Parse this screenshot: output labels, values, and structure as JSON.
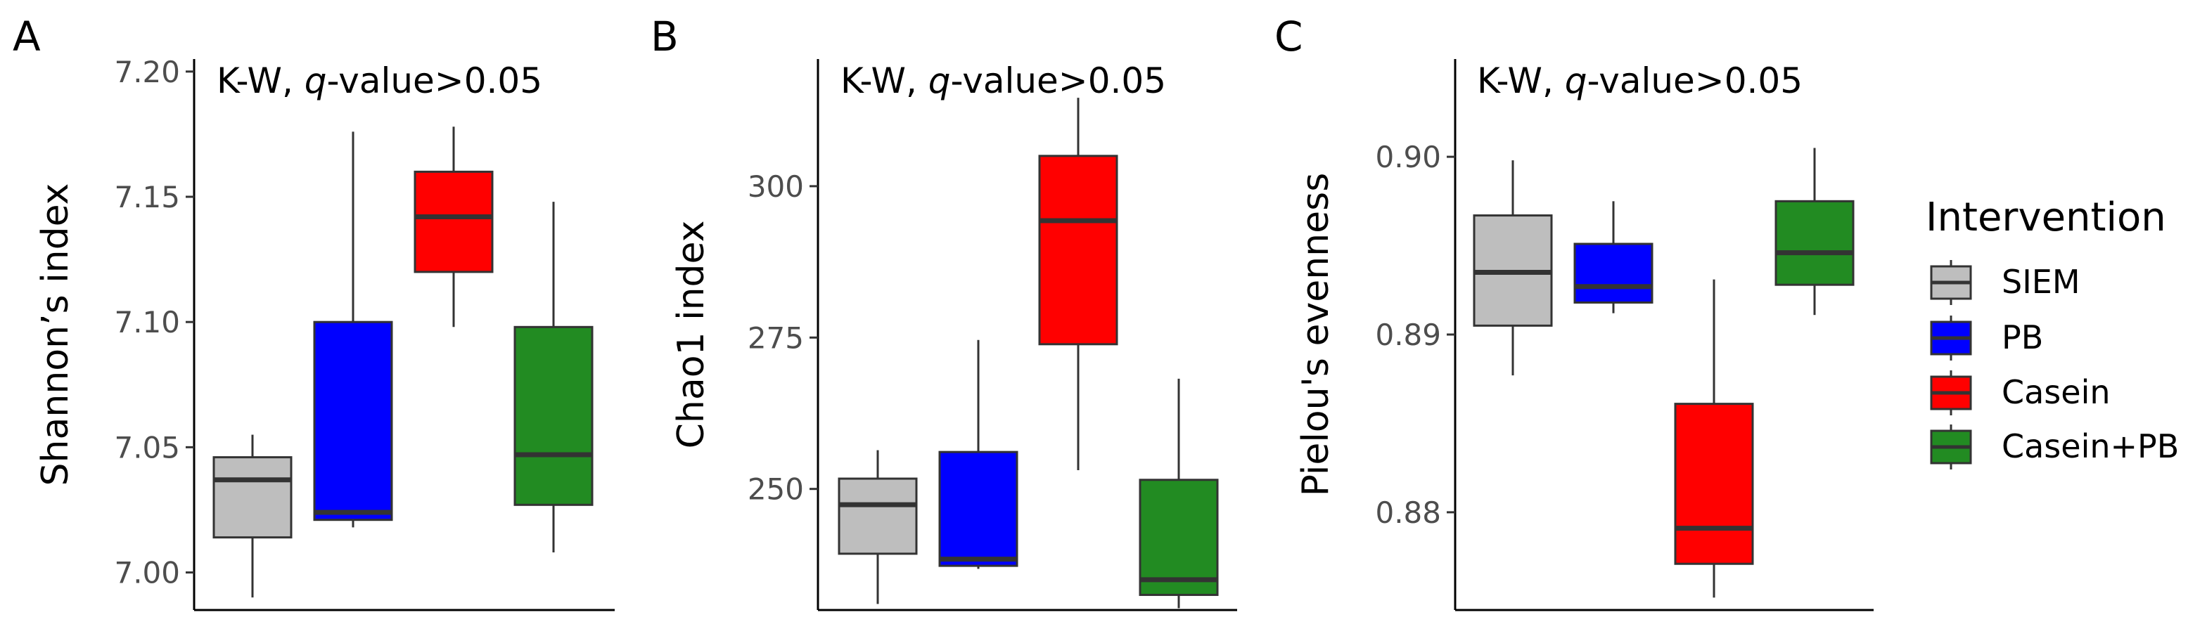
{
  "chart_data": [
    {
      "type": "box",
      "panel_label": "A",
      "annotation": "K-W, q-value>0.05",
      "ylabel": "Shannon’s index",
      "ylim": [
        6.985,
        7.205
      ],
      "yticks": [
        "7.00",
        "7.05",
        "7.10",
        "7.15",
        "7.20"
      ],
      "categories": [
        "SIEM",
        "PB",
        "Casein",
        "Casein+PB"
      ],
      "boxes": [
        {
          "group": "SIEM",
          "low": 6.99,
          "q1": 7.014,
          "median": 7.037,
          "q3": 7.046,
          "high": 7.055
        },
        {
          "group": "PB",
          "low": 7.018,
          "q1": 7.021,
          "median": 7.024,
          "q3": 7.1,
          "high": 7.176
        },
        {
          "group": "Casein",
          "low": 7.098,
          "q1": 7.12,
          "median": 7.142,
          "q3": 7.16,
          "high": 7.178
        },
        {
          "group": "Casein+PB",
          "low": 7.008,
          "q1": 7.027,
          "median": 7.047,
          "q3": 7.098,
          "high": 7.148
        }
      ]
    },
    {
      "type": "box",
      "panel_label": "B",
      "annotation": "K-W, q-value>0.05",
      "ylabel": "Chao1 index",
      "ylim": [
        230.0,
        321.0
      ],
      "yticks": [
        "250",
        "275",
        "300"
      ],
      "categories": [
        "SIEM",
        "PB",
        "Casein",
        "Casein+PB"
      ],
      "boxes": [
        {
          "group": "SIEM",
          "low": 231.0,
          "q1": 239.3,
          "median": 247.4,
          "q3": 251.7,
          "high": 256.4
        },
        {
          "group": "PB",
          "low": 236.8,
          "q1": 237.3,
          "median": 238.4,
          "q3": 256.1,
          "high": 274.6
        },
        {
          "group": "Casein",
          "low": 253.1,
          "q1": 273.9,
          "median": 294.3,
          "q3": 305.0,
          "high": 314.6
        },
        {
          "group": "Casein+PB",
          "low": 230.3,
          "q1": 232.5,
          "median": 235.0,
          "q3": 251.5,
          "high": 268.2
        }
      ]
    },
    {
      "type": "box",
      "panel_label": "C",
      "annotation": "K-W, q-value>0.05",
      "ylabel": "Pielou's evenness",
      "ylim": [
        0.8745,
        0.9055
      ],
      "yticks": [
        "0.88",
        "0.89",
        "0.90"
      ],
      "categories": [
        "SIEM",
        "PB",
        "Casein",
        "Casein+PB"
      ],
      "boxes": [
        {
          "group": "SIEM",
          "low": 0.8877,
          "q1": 0.8905,
          "median": 0.8935,
          "q3": 0.8967,
          "high": 0.8998
        },
        {
          "group": "PB",
          "low": 0.8912,
          "q1": 0.8918,
          "median": 0.8927,
          "q3": 0.8951,
          "high": 0.8975
        },
        {
          "group": "Casein",
          "low": 0.8752,
          "q1": 0.8771,
          "median": 0.8791,
          "q3": 0.8861,
          "high": 0.8931
        },
        {
          "group": "Casein+PB",
          "low": 0.8911,
          "q1": 0.8928,
          "median": 0.8946,
          "q3": 0.8975,
          "high": 0.9005
        }
      ]
    }
  ],
  "legend": {
    "title": "Intervention",
    "entries": [
      {
        "label": "SIEM",
        "color": "#bebebe"
      },
      {
        "label": "PB",
        "color": "#0000ff"
      },
      {
        "label": "Casein",
        "color": "#ff0000"
      },
      {
        "label": "Casein+PB",
        "color": "#228b22"
      }
    ]
  }
}
